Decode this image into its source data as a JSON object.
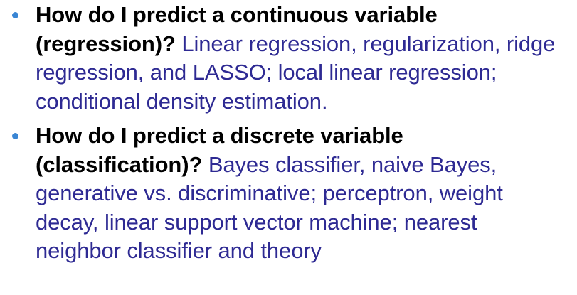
{
  "slide": {
    "bullets": [
      {
        "question": "How do I predict a continuous variable (regression)?",
        "answer": "Linear regression, regularization, ridge regression, and LASSO; local linear regression; conditional density estimation."
      },
      {
        "question": "How do I predict a discrete variable (classification)?",
        "answer": "Bayes classifier, naive Bayes, generative vs. discriminative; perceptron, weight decay, linear support vector machine; nearest neighbor classifier and theory"
      }
    ],
    "colors": {
      "bullet": "#3a86d4",
      "question": "#000000",
      "answer": "#2e2a93",
      "background": "#ffffff"
    },
    "icons": {
      "bullet": "bullet-dot-icon"
    }
  }
}
